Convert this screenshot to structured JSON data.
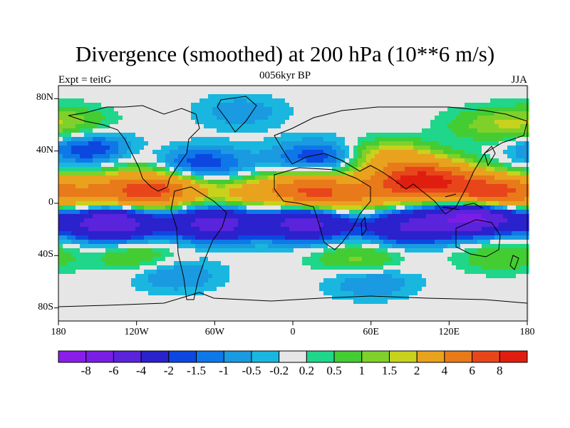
{
  "title": "Divergence (smoothed) at 200 hPa (10**6 m/s)",
  "subtitle_left": "Expt = teitG",
  "subtitle_center": "0056kyr BP",
  "subtitle_right": "JJA",
  "lat_labels": [
    "80N",
    "40N",
    "0",
    "40S",
    "80S"
  ],
  "lat_values": [
    80,
    40,
    0,
    -40,
    -80
  ],
  "lon_labels": [
    "180",
    "120W",
    "60W",
    "0",
    "60E",
    "120E",
    "180"
  ],
  "lon_values": [
    -180,
    -120,
    -60,
    0,
    60,
    120,
    180
  ],
  "colorbar": {
    "labels": [
      "-8",
      "-6",
      "-4",
      "-2",
      "-1.5",
      "-1",
      "-0.5",
      "-0.2",
      "0.2",
      "0.5",
      "1",
      "1.5",
      "2",
      "4",
      "6",
      "8"
    ],
    "colors": [
      "#8a1ee8",
      "#7a1ee6",
      "#5a23dc",
      "#2a22cc",
      "#0c48e0",
      "#0e78e8",
      "#1a9ae0",
      "#19b7e0",
      "#e6e6e6",
      "#1fd68a",
      "#44cc33",
      "#7fd12a",
      "#c8d21c",
      "#e8a21e",
      "#e87a1a",
      "#e8461a",
      "#e01e10"
    ]
  },
  "chart_data": {
    "type": "heatmap",
    "variable": "Divergence (smoothed) at 200 hPa",
    "units": "10**6 m/s",
    "period": "JJA",
    "experiment": "teitG",
    "time": "0056kyr BP",
    "xlim": [
      -180,
      180
    ],
    "ylim": [
      -90,
      90
    ],
    "levels": [
      -8,
      -6,
      -4,
      -2,
      -1.5,
      -1,
      -0.5,
      -0.2,
      0.2,
      0.5,
      1,
      1.5,
      2,
      4,
      6,
      8
    ],
    "features": [
      {
        "lon": -110,
        "lat": 10,
        "value": 7
      },
      {
        "lon": -160,
        "lat": 8,
        "value": 3
      },
      {
        "lon": -40,
        "lat": 6,
        "value": 2
      },
      {
        "lon": 10,
        "lat": 10,
        "value": 5
      },
      {
        "lon": 40,
        "lat": 5,
        "value": 3
      },
      {
        "lon": 90,
        "lat": 15,
        "value": 6
      },
      {
        "lon": 110,
        "lat": 20,
        "value": 4
      },
      {
        "lon": 150,
        "lat": 8,
        "value": 7
      },
      {
        "lon": 75,
        "lat": 35,
        "value": 2.5
      },
      {
        "lon": -135,
        "lat": 37,
        "value": 1.5
      },
      {
        "lon": -140,
        "lat": -15,
        "value": -6
      },
      {
        "lon": -60,
        "lat": -15,
        "value": -5
      },
      {
        "lon": 10,
        "lat": -15,
        "value": -5
      },
      {
        "lon": 90,
        "lat": -18,
        "value": -4
      },
      {
        "lon": 140,
        "lat": -10,
        "value": -7
      },
      {
        "lon": -150,
        "lat": 40,
        "value": -3
      },
      {
        "lon": -70,
        "lat": 30,
        "value": -2
      },
      {
        "lon": 20,
        "lat": 35,
        "value": -2
      },
      {
        "lon": -175,
        "lat": 62,
        "value": 1.2
      },
      {
        "lon": 150,
        "lat": 60,
        "value": 1
      },
      {
        "lon": -120,
        "lat": -40,
        "value": 1
      },
      {
        "lon": 50,
        "lat": -42,
        "value": 1.2
      },
      {
        "lon": 160,
        "lat": -40,
        "value": 1
      },
      {
        "lon": -90,
        "lat": -55,
        "value": -1
      },
      {
        "lon": 60,
        "lat": -60,
        "value": -1
      },
      {
        "lon": -40,
        "lat": 70,
        "value": -0.8
      }
    ]
  }
}
